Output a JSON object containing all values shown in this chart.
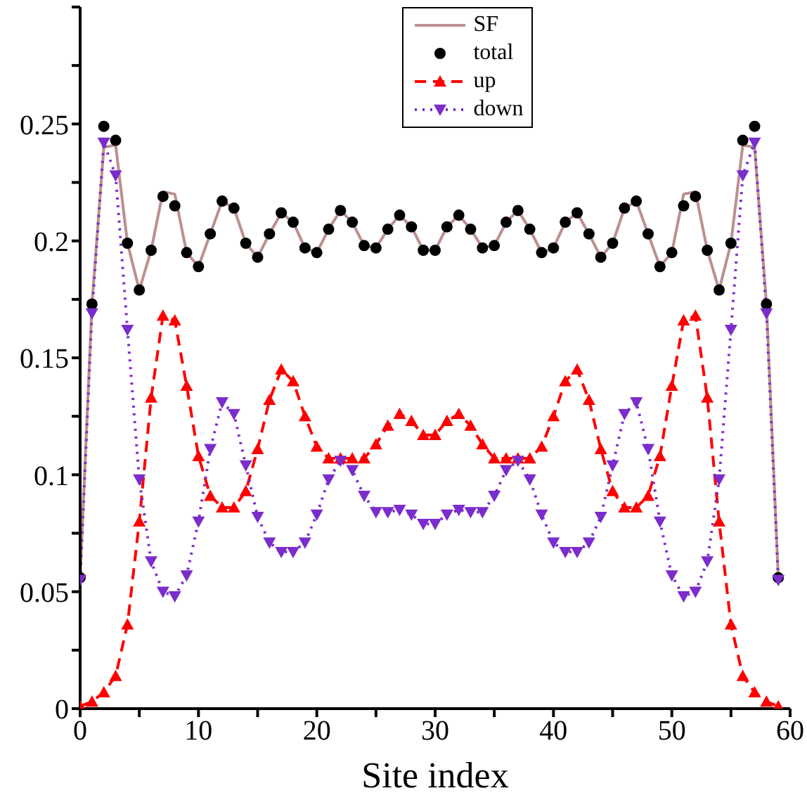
{
  "chart_data": {
    "type": "line",
    "xlabel": "Site index",
    "x": [
      0,
      1,
      2,
      3,
      4,
      5,
      6,
      7,
      8,
      9,
      10,
      11,
      12,
      13,
      14,
      15,
      16,
      17,
      18,
      19,
      20,
      21,
      22,
      23,
      24,
      25,
      26,
      27,
      28,
      29,
      30,
      31,
      32,
      33,
      34,
      35,
      36,
      37,
      38,
      39,
      40,
      41,
      42,
      43,
      44,
      45,
      46,
      47,
      48,
      49,
      50,
      51,
      52,
      53,
      54,
      55,
      56,
      57,
      58,
      59
    ],
    "series": [
      {
        "name": "SF",
        "color": "#bc8f8f",
        "marker": "none",
        "line_style": "solid",
        "values": [
          0.056,
          0.173,
          0.24,
          0.241,
          0.199,
          0.179,
          0.196,
          0.221,
          0.22,
          0.195,
          0.189,
          0.203,
          0.217,
          0.214,
          0.199,
          0.193,
          0.203,
          0.212,
          0.208,
          0.197,
          0.195,
          0.205,
          0.213,
          0.208,
          0.198,
          0.197,
          0.205,
          0.211,
          0.206,
          0.196,
          0.196,
          0.206,
          0.211,
          0.205,
          0.197,
          0.198,
          0.208,
          0.213,
          0.205,
          0.195,
          0.197,
          0.208,
          0.212,
          0.203,
          0.193,
          0.199,
          0.214,
          0.217,
          0.203,
          0.189,
          0.195,
          0.22,
          0.221,
          0.196,
          0.179,
          0.199,
          0.241,
          0.24,
          0.173,
          0.056
        ]
      },
      {
        "name": "total",
        "type": "scatter",
        "color": "#000000",
        "marker": "circle",
        "values": [
          0.056,
          0.173,
          0.249,
          0.243,
          0.199,
          0.179,
          0.196,
          0.219,
          0.215,
          0.195,
          0.189,
          0.203,
          0.217,
          0.214,
          0.199,
          0.193,
          0.203,
          0.212,
          0.208,
          0.197,
          0.195,
          0.205,
          0.213,
          0.208,
          0.198,
          0.197,
          0.205,
          0.211,
          0.206,
          0.196,
          0.196,
          0.206,
          0.211,
          0.205,
          0.197,
          0.198,
          0.208,
          0.213,
          0.205,
          0.195,
          0.197,
          0.208,
          0.212,
          0.203,
          0.193,
          0.199,
          0.214,
          0.217,
          0.203,
          0.189,
          0.195,
          0.215,
          0.219,
          0.196,
          0.179,
          0.199,
          0.243,
          0.249,
          0.173,
          0.056
        ]
      },
      {
        "name": "up",
        "color": "#ff0000",
        "marker": "triangle",
        "line_style": "dashed",
        "values": [
          0.001,
          0.003,
          0.007,
          0.014,
          0.036,
          0.08,
          0.133,
          0.168,
          0.166,
          0.138,
          0.108,
          0.091,
          0.086,
          0.086,
          0.093,
          0.111,
          0.132,
          0.145,
          0.14,
          0.125,
          0.112,
          0.107,
          0.107,
          0.107,
          0.107,
          0.113,
          0.121,
          0.126,
          0.123,
          0.117,
          0.117,
          0.123,
          0.126,
          0.121,
          0.113,
          0.107,
          0.107,
          0.107,
          0.107,
          0.112,
          0.125,
          0.14,
          0.145,
          0.132,
          0.111,
          0.093,
          0.086,
          0.086,
          0.091,
          0.108,
          0.138,
          0.166,
          0.168,
          0.133,
          0.08,
          0.036,
          0.014,
          0.007,
          0.003,
          0.001
        ]
      },
      {
        "name": "down",
        "color": "#7b2ccc",
        "marker": "triangle-down",
        "line_style": "dotted",
        "values": [
          0.055,
          0.169,
          0.242,
          0.228,
          0.162,
          0.098,
          0.063,
          0.05,
          0.048,
          0.057,
          0.08,
          0.111,
          0.131,
          0.126,
          0.104,
          0.082,
          0.071,
          0.067,
          0.067,
          0.071,
          0.083,
          0.098,
          0.106,
          0.102,
          0.091,
          0.084,
          0.084,
          0.085,
          0.083,
          0.079,
          0.079,
          0.083,
          0.085,
          0.084,
          0.084,
          0.091,
          0.102,
          0.106,
          0.098,
          0.083,
          0.071,
          0.067,
          0.067,
          0.071,
          0.082,
          0.104,
          0.126,
          0.131,
          0.111,
          0.08,
          0.057,
          0.048,
          0.05,
          0.063,
          0.098,
          0.162,
          0.228,
          0.242,
          0.169,
          0.055
        ]
      }
    ],
    "xlim": [
      0,
      60
    ],
    "xticks": [
      0,
      {
        "value": 5,
        "label": null
      },
      10,
      {
        "value": 15,
        "label": null
      },
      20,
      {
        "value": 25,
        "label": null
      },
      30,
      {
        "value": 35,
        "label": null
      },
      40,
      {
        "value": 45,
        "label": null
      },
      50,
      {
        "value": 55,
        "label": null
      },
      60
    ],
    "ylim": [
      0,
      0.3
    ],
    "yticks": [
      0,
      {
        "value": 0.025,
        "label": null
      },
      0.05,
      {
        "value": 0.075,
        "label": null
      },
      0.1,
      {
        "value": 0.125,
        "label": null
      },
      0.15,
      {
        "value": 0.175,
        "label": null
      },
      0.2,
      {
        "value": 0.225,
        "label": null
      },
      0.25,
      {
        "value": 0.275,
        "label": null
      },
      {
        "value": 0.3,
        "label": null
      }
    ],
    "legend": "top"
  }
}
